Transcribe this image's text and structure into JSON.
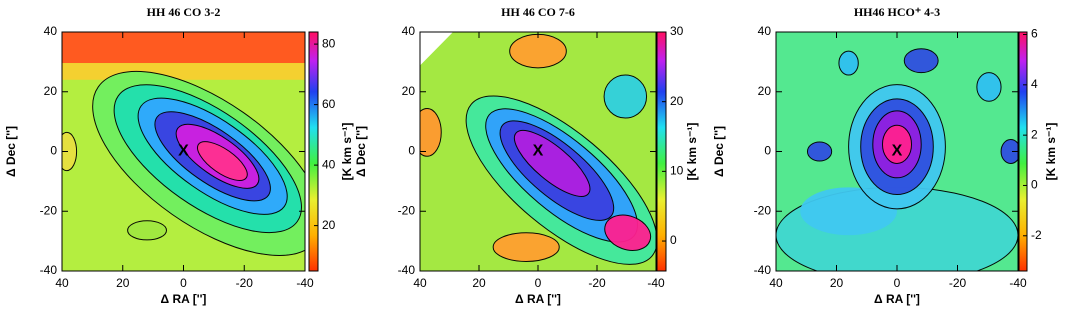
{
  "chart_data": [
    {
      "type": "heatmap",
      "title": "HH 46 CO 3-2",
      "xlabel": "Δ RA ['']",
      "ylabel": "Δ Dec ['']",
      "xlim": [
        40,
        -40
      ],
      "ylim": [
        -40,
        40
      ],
      "xticks": [
        40,
        20,
        0,
        -20,
        -40
      ],
      "yticks": [
        -40,
        -20,
        0,
        20,
        40
      ],
      "marker": {
        "label": "X",
        "x": 0,
        "y": 0
      },
      "colorbar": {
        "label": "[K km s⁻¹]",
        "lim": [
          5,
          84
        ],
        "ticks": [
          20,
          40,
          60,
          80
        ]
      }
    },
    {
      "type": "heatmap",
      "title": "HH 46 CO 7-6",
      "xlabel": "Δ RA ['']",
      "ylabel": "Δ Dec ['']",
      "xlim": [
        40,
        -40
      ],
      "ylim": [
        -40,
        40
      ],
      "xticks": [
        40,
        20,
        0,
        -20,
        -40
      ],
      "yticks": [
        -40,
        -20,
        0,
        20,
        40
      ],
      "marker": {
        "label": "X",
        "x": 0,
        "y": 0
      },
      "colorbar": {
        "label": "[K km s⁻¹]",
        "lim": [
          -4.3,
          30
        ],
        "ticks": [
          0,
          10,
          20,
          30
        ]
      }
    },
    {
      "type": "heatmap",
      "title": "HH46 HCO⁺ 4-3",
      "xlabel": "Δ RA ['']",
      "ylabel": "Δ Dec ['']",
      "xlim": [
        40,
        -40
      ],
      "ylim": [
        -40,
        40
      ],
      "xticks": [
        40,
        20,
        0,
        -20,
        -40
      ],
      "yticks": [
        -40,
        -20,
        0,
        20,
        40
      ],
      "marker": {
        "label": "X",
        "x": 0,
        "y": 0
      },
      "colorbar": {
        "label": "[K km s⁻¹]",
        "lim": [
          -3.4,
          6.1
        ],
        "ticks": [
          -2,
          0,
          2,
          4,
          6
        ]
      }
    }
  ]
}
